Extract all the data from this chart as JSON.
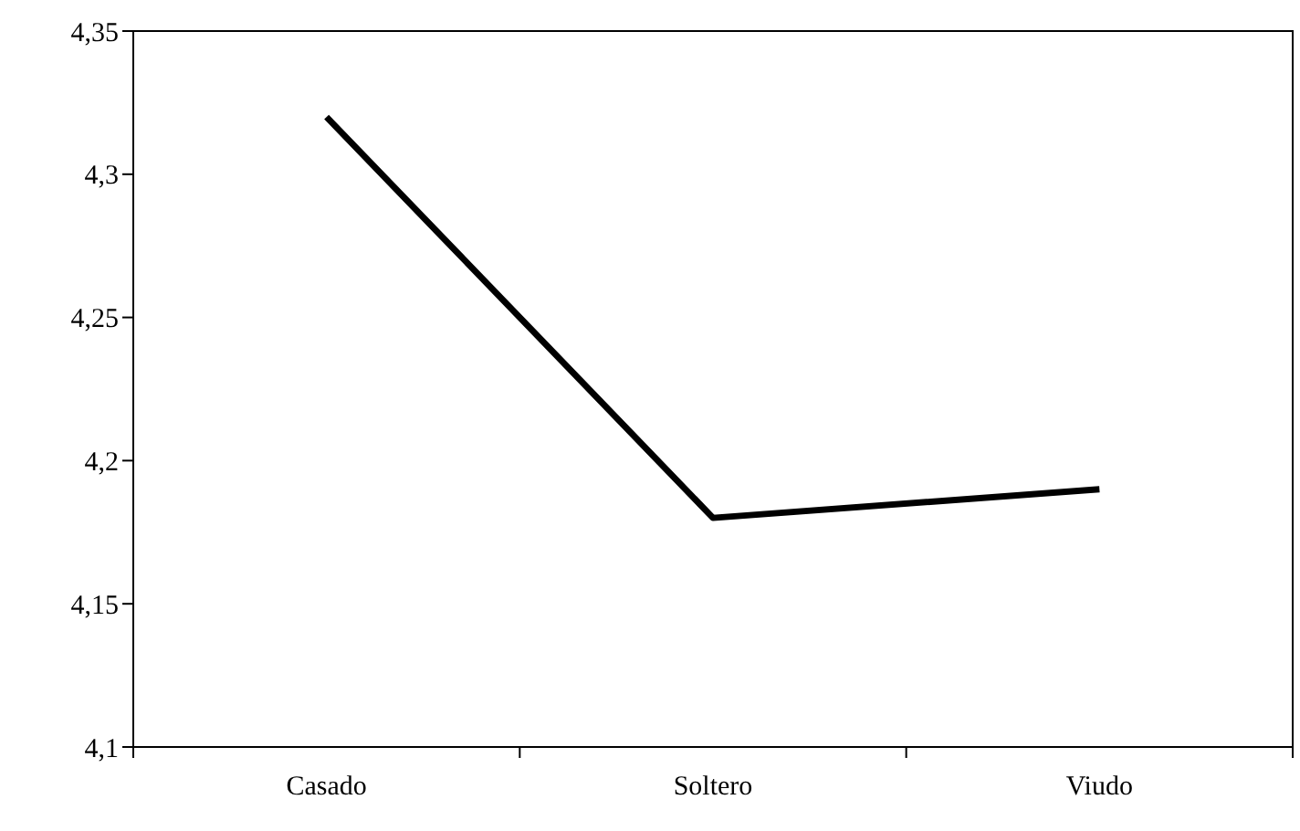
{
  "chart_data": {
    "type": "line",
    "categories": [
      "Casado",
      "Soltero",
      "Viudo"
    ],
    "series": [
      {
        "color": "#000000",
        "values": [
          4.32,
          4.18,
          4.19
        ]
      }
    ],
    "ylim": [
      4.1,
      4.35
    ],
    "yticks": [
      {
        "value": 4.1,
        "label": "4,1"
      },
      {
        "value": 4.15,
        "label": "4,15"
      },
      {
        "value": 4.2,
        "label": "4,2"
      },
      {
        "value": 4.25,
        "label": "4,25"
      },
      {
        "value": 4.3,
        "label": "4,3"
      },
      {
        "value": 4.35,
        "label": "4,35"
      }
    ],
    "grid": false,
    "marker": "none",
    "line_style": "solid"
  }
}
